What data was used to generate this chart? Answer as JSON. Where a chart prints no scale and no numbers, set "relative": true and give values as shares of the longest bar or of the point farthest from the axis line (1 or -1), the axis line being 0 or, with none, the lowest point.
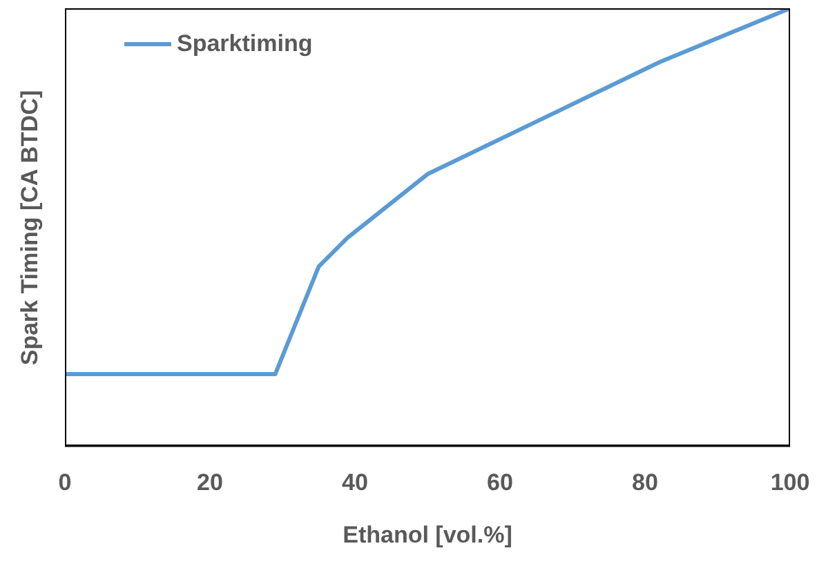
{
  "chart_data": {
    "type": "line",
    "relative": true,
    "xlabel": "Ethanol [vol.%]",
    "ylabel": "Spark Timing [CA BTDC]",
    "x": [
      0,
      29,
      35,
      39,
      50,
      82,
      100
    ],
    "series": [
      {
        "name": "Sparktiming",
        "color": "#5b9bd5",
        "values": [
          0.164,
          0.164,
          0.41,
          0.476,
          0.621,
          0.877,
          1
        ]
      }
    ],
    "xlim": [
      0,
      100
    ],
    "xticks": [
      0,
      20,
      40,
      60,
      80,
      100
    ],
    "legend": "top left",
    "marker": "none",
    "line_style": "solid"
  }
}
